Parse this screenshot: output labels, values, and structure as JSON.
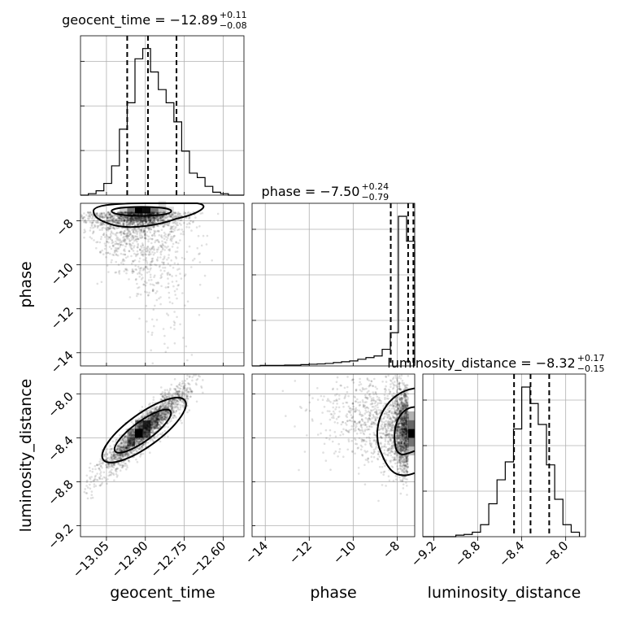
{
  "chart_data": {
    "type": "corner",
    "parameters": [
      {
        "name": "geocent_time",
        "range": [
          -13.15,
          -12.52
        ]
      },
      {
        "name": "phase",
        "range": [
          -14.6,
          -7.2
        ]
      },
      {
        "name": "luminosity_distance",
        "range": [
          -9.3,
          -7.82
        ]
      }
    ],
    "titles": [
      {
        "param": "geocent_time",
        "prefix": "geocent_time = ",
        "value": "−12.89",
        "plus": "+0.11",
        "minus": "−0.08"
      },
      {
        "param": "phase",
        "prefix": "phase = ",
        "value": "−7.50",
        "plus": "+0.24",
        "minus": "−0.79"
      },
      {
        "param": "luminosity_distance",
        "prefix": "luminosity_distance = ",
        "value": "−8.32",
        "plus": "+0.17",
        "minus": "−0.15"
      }
    ],
    "ticks": {
      "geocent_time": [
        -13.05,
        -12.9,
        -12.75,
        -12.6
      ],
      "geocent_time_labels": [
        "−13.05",
        "−12.90",
        "−12.75",
        "−12.60"
      ],
      "phase": [
        -14,
        -12,
        -10,
        -8
      ],
      "phase_labels": [
        "−14",
        "−12",
        "−10",
        "−8"
      ],
      "luminosity_distance": [
        -9.2,
        -8.8,
        -8.4,
        -8.0
      ],
      "luminosity_distance_labels": [
        "−9.2",
        "−8.8",
        "−8.4",
        "−8.0"
      ]
    },
    "marginals": {
      "geocent_time": {
        "bin_edges": [
          -13.15,
          -13.12,
          -13.09,
          -13.06,
          -13.03,
          -13.0,
          -12.97,
          -12.94,
          -12.91,
          -12.88,
          -12.85,
          -12.82,
          -12.79,
          -12.76,
          -12.73,
          -12.7,
          -12.67,
          -12.64,
          -12.61,
          -12.58,
          -12.55,
          -12.52
        ],
        "counts": [
          0,
          0.01,
          0.03,
          0.08,
          0.2,
          0.45,
          0.63,
          0.93,
          1.0,
          0.84,
          0.72,
          0.63,
          0.5,
          0.3,
          0.15,
          0.12,
          0.06,
          0.02,
          0.01,
          0,
          0
        ],
        "quantiles": [
          -12.97,
          -12.89,
          -12.78
        ]
      },
      "phase": {
        "bin_edges": [
          -14.6,
          -14.23,
          -13.86,
          -13.49,
          -13.12,
          -12.75,
          -12.38,
          -12.01,
          -11.64,
          -11.27,
          -10.9,
          -10.53,
          -10.16,
          -9.79,
          -9.42,
          -9.05,
          -8.68,
          -8.31,
          -7.94,
          -7.57,
          -7.2
        ],
        "counts": [
          0,
          0.003,
          0.003,
          0.003,
          0.005,
          0.005,
          0.008,
          0.01,
          0.012,
          0.015,
          0.02,
          0.025,
          0.03,
          0.04,
          0.05,
          0.06,
          0.1,
          0.2,
          0.9,
          0.75
        ],
        "quantiles": [
          -8.29,
          -7.5,
          -7.26
        ]
      },
      "luminosity_distance": {
        "bin_edges": [
          -9.3,
          -9.225,
          -9.15,
          -9.075,
          -9.0,
          -8.925,
          -8.85,
          -8.775,
          -8.7,
          -8.625,
          -8.55,
          -8.475,
          -8.4,
          -8.325,
          -8.25,
          -8.175,
          -8.1,
          -8.025,
          -7.95,
          -7.875
        ],
        "counts": [
          0,
          0,
          0,
          0,
          0.01,
          0.015,
          0.03,
          0.08,
          0.22,
          0.38,
          0.5,
          0.72,
          1.0,
          0.89,
          0.75,
          0.48,
          0.25,
          0.08,
          0.03
        ],
        "quantiles": [
          -8.47,
          -8.32,
          -8.15
        ]
      }
    },
    "joint_2d": [
      {
        "x": "geocent_time",
        "y": "phase",
        "correlation": -0.6
      },
      {
        "x": "geocent_time",
        "y": "luminosity_distance",
        "correlation": 0.85
      },
      {
        "x": "phase",
        "y": "luminosity_distance",
        "correlation": 0.3
      }
    ],
    "grid": true
  }
}
